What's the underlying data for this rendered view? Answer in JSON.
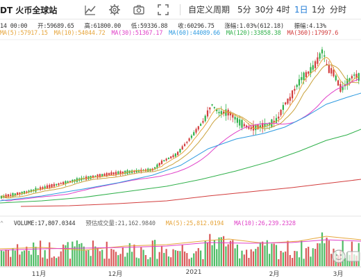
{
  "toolbar": {
    "pair": "DT  火币全球站",
    "period_select": "自定义周期",
    "timeframes": [
      "5分",
      "30分",
      "4时",
      "1日",
      "1分",
      "分时"
    ],
    "active_timeframe": "1日",
    "icons": [
      "indicator-icon",
      "settings-icon",
      "snapshot-icon",
      "fullscreen-icon"
    ]
  },
  "ohlc": {
    "date": "14 00:00",
    "open_label": "开:",
    "open": "59689.65",
    "high_label": "高:",
    "high": "61800.00",
    "low_label": "低:",
    "low": "59336.88",
    "close_label": "收:",
    "close": "60296.75",
    "change_label": "涨幅:",
    "change": "1.03%(612.18)",
    "amplitude_label": "振幅:",
    "amplitude": "4.13%"
  },
  "ma_legend": [
    {
      "label": "MA(5):57917.15",
      "color": "#e6a53b"
    },
    {
      "label": "MA(10):54044.72",
      "color": "#e6a53b"
    },
    {
      "label": "MA(30):51367.17",
      "color": "#e040c8"
    },
    {
      "label": "MA(60):44089.66",
      "color": "#2f9be0"
    },
    {
      "label": "MA(120):33858.38",
      "color": "#2fb04a"
    },
    {
      "label": "MA(360):17997.6",
      "color": "#d23c3c"
    }
  ],
  "volume_legend": {
    "volume": "VOLUME:17,807.0344",
    "predicted": "预估成交量:21,162.9840",
    "ma5": "MA(5):25,812.0194",
    "ma10": "MA(10):26,239.2328"
  },
  "x_axis": [
    "11月",
    "12月",
    "2021",
    "2月",
    "3月"
  ],
  "colors": {
    "up": "#2fb04a",
    "down": "#d23c3c",
    "active": "#1f7bd6",
    "ma5": "#e6a53b",
    "ma30": "#e040c8",
    "ma60": "#2f9be0",
    "ma120": "#2fb04a",
    "ma360": "#d23c3c"
  }
}
